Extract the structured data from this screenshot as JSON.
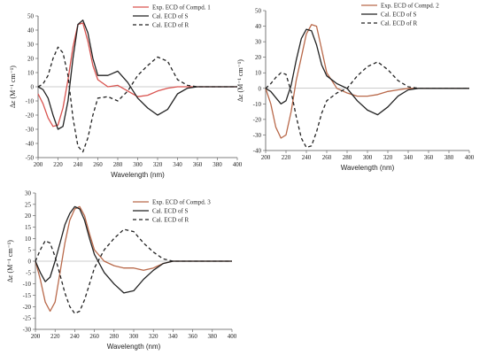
{
  "colors": {
    "exp_panel1": "#d9534f",
    "exp_panel2_3": "#b9694a",
    "cal_s": "#222222",
    "cal_r": "#222222"
  },
  "chart_data": [
    {
      "type": "line",
      "xlabel": "Wavelength (nm)",
      "ylabel": "Δε (M⁻¹ cm⁻¹)",
      "xlim": [
        200,
        400
      ],
      "ylim": [
        -50,
        50
      ],
      "xticks": [
        200,
        220,
        240,
        260,
        280,
        300,
        320,
        340,
        360,
        380,
        400
      ],
      "yticks": [
        50,
        40,
        30,
        20,
        10,
        0,
        -10,
        -20,
        -30,
        -40,
        -50
      ],
      "legend_position": "top-right",
      "series": [
        {
          "name": "Exp. ECD of Compd. 1",
          "style": "solid",
          "color_key": "exp_panel1",
          "x": [
            200,
            205,
            210,
            215,
            220,
            225,
            230,
            235,
            240,
            245,
            250,
            255,
            260,
            270,
            280,
            290,
            300,
            310,
            320,
            330,
            340,
            350,
            360,
            380,
            400
          ],
          "y": [
            -5,
            -12,
            -22,
            -28,
            -27,
            -15,
            5,
            28,
            44,
            45,
            32,
            15,
            5,
            0,
            1,
            -3,
            -7,
            -6,
            -3,
            -1,
            0,
            0,
            0,
            0,
            0
          ]
        },
        {
          "name": "Cal. ECD of S",
          "style": "solid",
          "color_key": "cal_s",
          "x": [
            200,
            205,
            210,
            215,
            220,
            225,
            230,
            235,
            240,
            245,
            250,
            255,
            260,
            270,
            280,
            290,
            300,
            310,
            320,
            330,
            340,
            350,
            360,
            380,
            400
          ],
          "y": [
            0,
            -2,
            -8,
            -20,
            -30,
            -28,
            -10,
            20,
            44,
            47,
            38,
            20,
            8,
            8,
            11,
            3,
            -8,
            -15,
            -20,
            -16,
            -5,
            -1,
            0,
            0,
            0
          ]
        },
        {
          "name": "Cal. ECD of R",
          "style": "dashed",
          "color_key": "cal_r",
          "x": [
            200,
            205,
            210,
            215,
            220,
            225,
            230,
            235,
            240,
            245,
            250,
            255,
            260,
            270,
            280,
            290,
            300,
            310,
            320,
            330,
            340,
            350,
            360,
            380,
            400
          ],
          "y": [
            0,
            2,
            8,
            20,
            28,
            24,
            8,
            -22,
            -42,
            -46,
            -36,
            -20,
            -8,
            -7,
            -10,
            -3,
            8,
            15,
            21,
            18,
            5,
            1,
            0,
            0,
            0
          ]
        }
      ]
    },
    {
      "type": "line",
      "xlabel": "Wavelength (nm)",
      "ylabel": "Δε (M⁻¹ cm⁻¹)",
      "xlim": [
        200,
        400
      ],
      "ylim": [
        -40,
        50
      ],
      "xticks": [
        200,
        220,
        240,
        260,
        280,
        300,
        320,
        340,
        360,
        380,
        400
      ],
      "yticks": [
        50,
        40,
        30,
        20,
        10,
        0,
        -10,
        -20,
        -30,
        -40
      ],
      "legend_position": "top-right",
      "series": [
        {
          "name": "Exp. ECD of Compd. 2",
          "style": "solid",
          "color_key": "exp_panel2_3",
          "x": [
            200,
            205,
            210,
            215,
            220,
            225,
            230,
            235,
            240,
            245,
            250,
            255,
            260,
            270,
            280,
            290,
            300,
            310,
            320,
            330,
            340,
            350,
            360,
            380,
            400
          ],
          "y": [
            0,
            -10,
            -25,
            -32,
            -30,
            -15,
            5,
            20,
            35,
            41,
            40,
            25,
            10,
            0,
            -3,
            -5,
            -5,
            -4,
            -2,
            -1,
            0,
            0,
            0,
            0,
            0
          ]
        },
        {
          "name": "Cal. ECD of S",
          "style": "solid",
          "color_key": "cal_s",
          "x": [
            200,
            205,
            210,
            215,
            220,
            225,
            230,
            235,
            240,
            245,
            250,
            255,
            260,
            270,
            280,
            290,
            300,
            310,
            320,
            330,
            340,
            350,
            360,
            380,
            400
          ],
          "y": [
            0,
            -2,
            -6,
            -10,
            -8,
            2,
            18,
            32,
            38,
            37,
            28,
            15,
            8,
            3,
            0,
            -8,
            -14,
            -17,
            -12,
            -5,
            -1,
            0,
            0,
            0,
            0
          ]
        },
        {
          "name": "Cal. ECD of R",
          "style": "dashed",
          "color_key": "cal_r",
          "x": [
            200,
            205,
            210,
            215,
            220,
            225,
            230,
            235,
            240,
            245,
            250,
            255,
            260,
            270,
            280,
            290,
            300,
            310,
            320,
            330,
            340,
            350,
            360,
            380,
            400
          ],
          "y": [
            0,
            3,
            7,
            10,
            9,
            -2,
            -18,
            -32,
            -38,
            -37,
            -28,
            -16,
            -8,
            -3,
            0,
            8,
            14,
            17,
            12,
            5,
            1,
            0,
            0,
            0,
            0
          ]
        }
      ]
    },
    {
      "type": "line",
      "xlabel": "Wavelength (nm)",
      "ylabel": "Δε (M⁻¹ cm⁻¹)",
      "xlim": [
        200,
        400
      ],
      "ylim": [
        -30,
        30
      ],
      "xticks": [
        200,
        220,
        240,
        260,
        280,
        300,
        320,
        340,
        360,
        380,
        400
      ],
      "yticks": [
        30,
        25,
        20,
        15,
        10,
        5,
        0,
        -5,
        -10,
        -15,
        -20,
        -25,
        -30
      ],
      "legend_position": "top-right",
      "series": [
        {
          "name": "Exp. ECD of Compd. 3",
          "style": "solid",
          "color_key": "exp_panel2_3",
          "x": [
            200,
            205,
            210,
            215,
            220,
            225,
            230,
            235,
            240,
            245,
            250,
            255,
            260,
            270,
            280,
            290,
            300,
            310,
            320,
            330,
            340,
            350,
            360,
            380,
            400
          ],
          "y": [
            0,
            -8,
            -18,
            -22,
            -18,
            -5,
            8,
            18,
            23,
            24,
            20,
            12,
            5,
            0,
            -2,
            -3,
            -3,
            -4,
            -3,
            -1,
            0,
            0,
            0,
            0,
            0
          ]
        },
        {
          "name": "Cal. ECD of S",
          "style": "solid",
          "color_key": "cal_s",
          "x": [
            200,
            205,
            210,
            215,
            220,
            225,
            230,
            235,
            240,
            245,
            250,
            255,
            260,
            270,
            280,
            290,
            300,
            310,
            320,
            330,
            340,
            350,
            360,
            380,
            400
          ],
          "y": [
            0,
            -5,
            -9,
            -7,
            0,
            8,
            16,
            21,
            24,
            23,
            18,
            10,
            3,
            -5,
            -10,
            -14,
            -13,
            -8,
            -4,
            -1,
            0,
            0,
            0,
            0,
            0
          ]
        },
        {
          "name": "Cal. ECD of R",
          "style": "dashed",
          "color_key": "cal_r",
          "x": [
            200,
            205,
            210,
            215,
            220,
            225,
            230,
            235,
            240,
            245,
            250,
            255,
            260,
            270,
            280,
            290,
            300,
            310,
            320,
            330,
            340,
            350,
            360,
            380,
            400
          ],
          "y": [
            0,
            5,
            9,
            8,
            2,
            -6,
            -14,
            -20,
            -23,
            -22,
            -17,
            -10,
            -3,
            5,
            10,
            14,
            13,
            8,
            4,
            1,
            0,
            0,
            0,
            0,
            0
          ]
        }
      ]
    }
  ]
}
